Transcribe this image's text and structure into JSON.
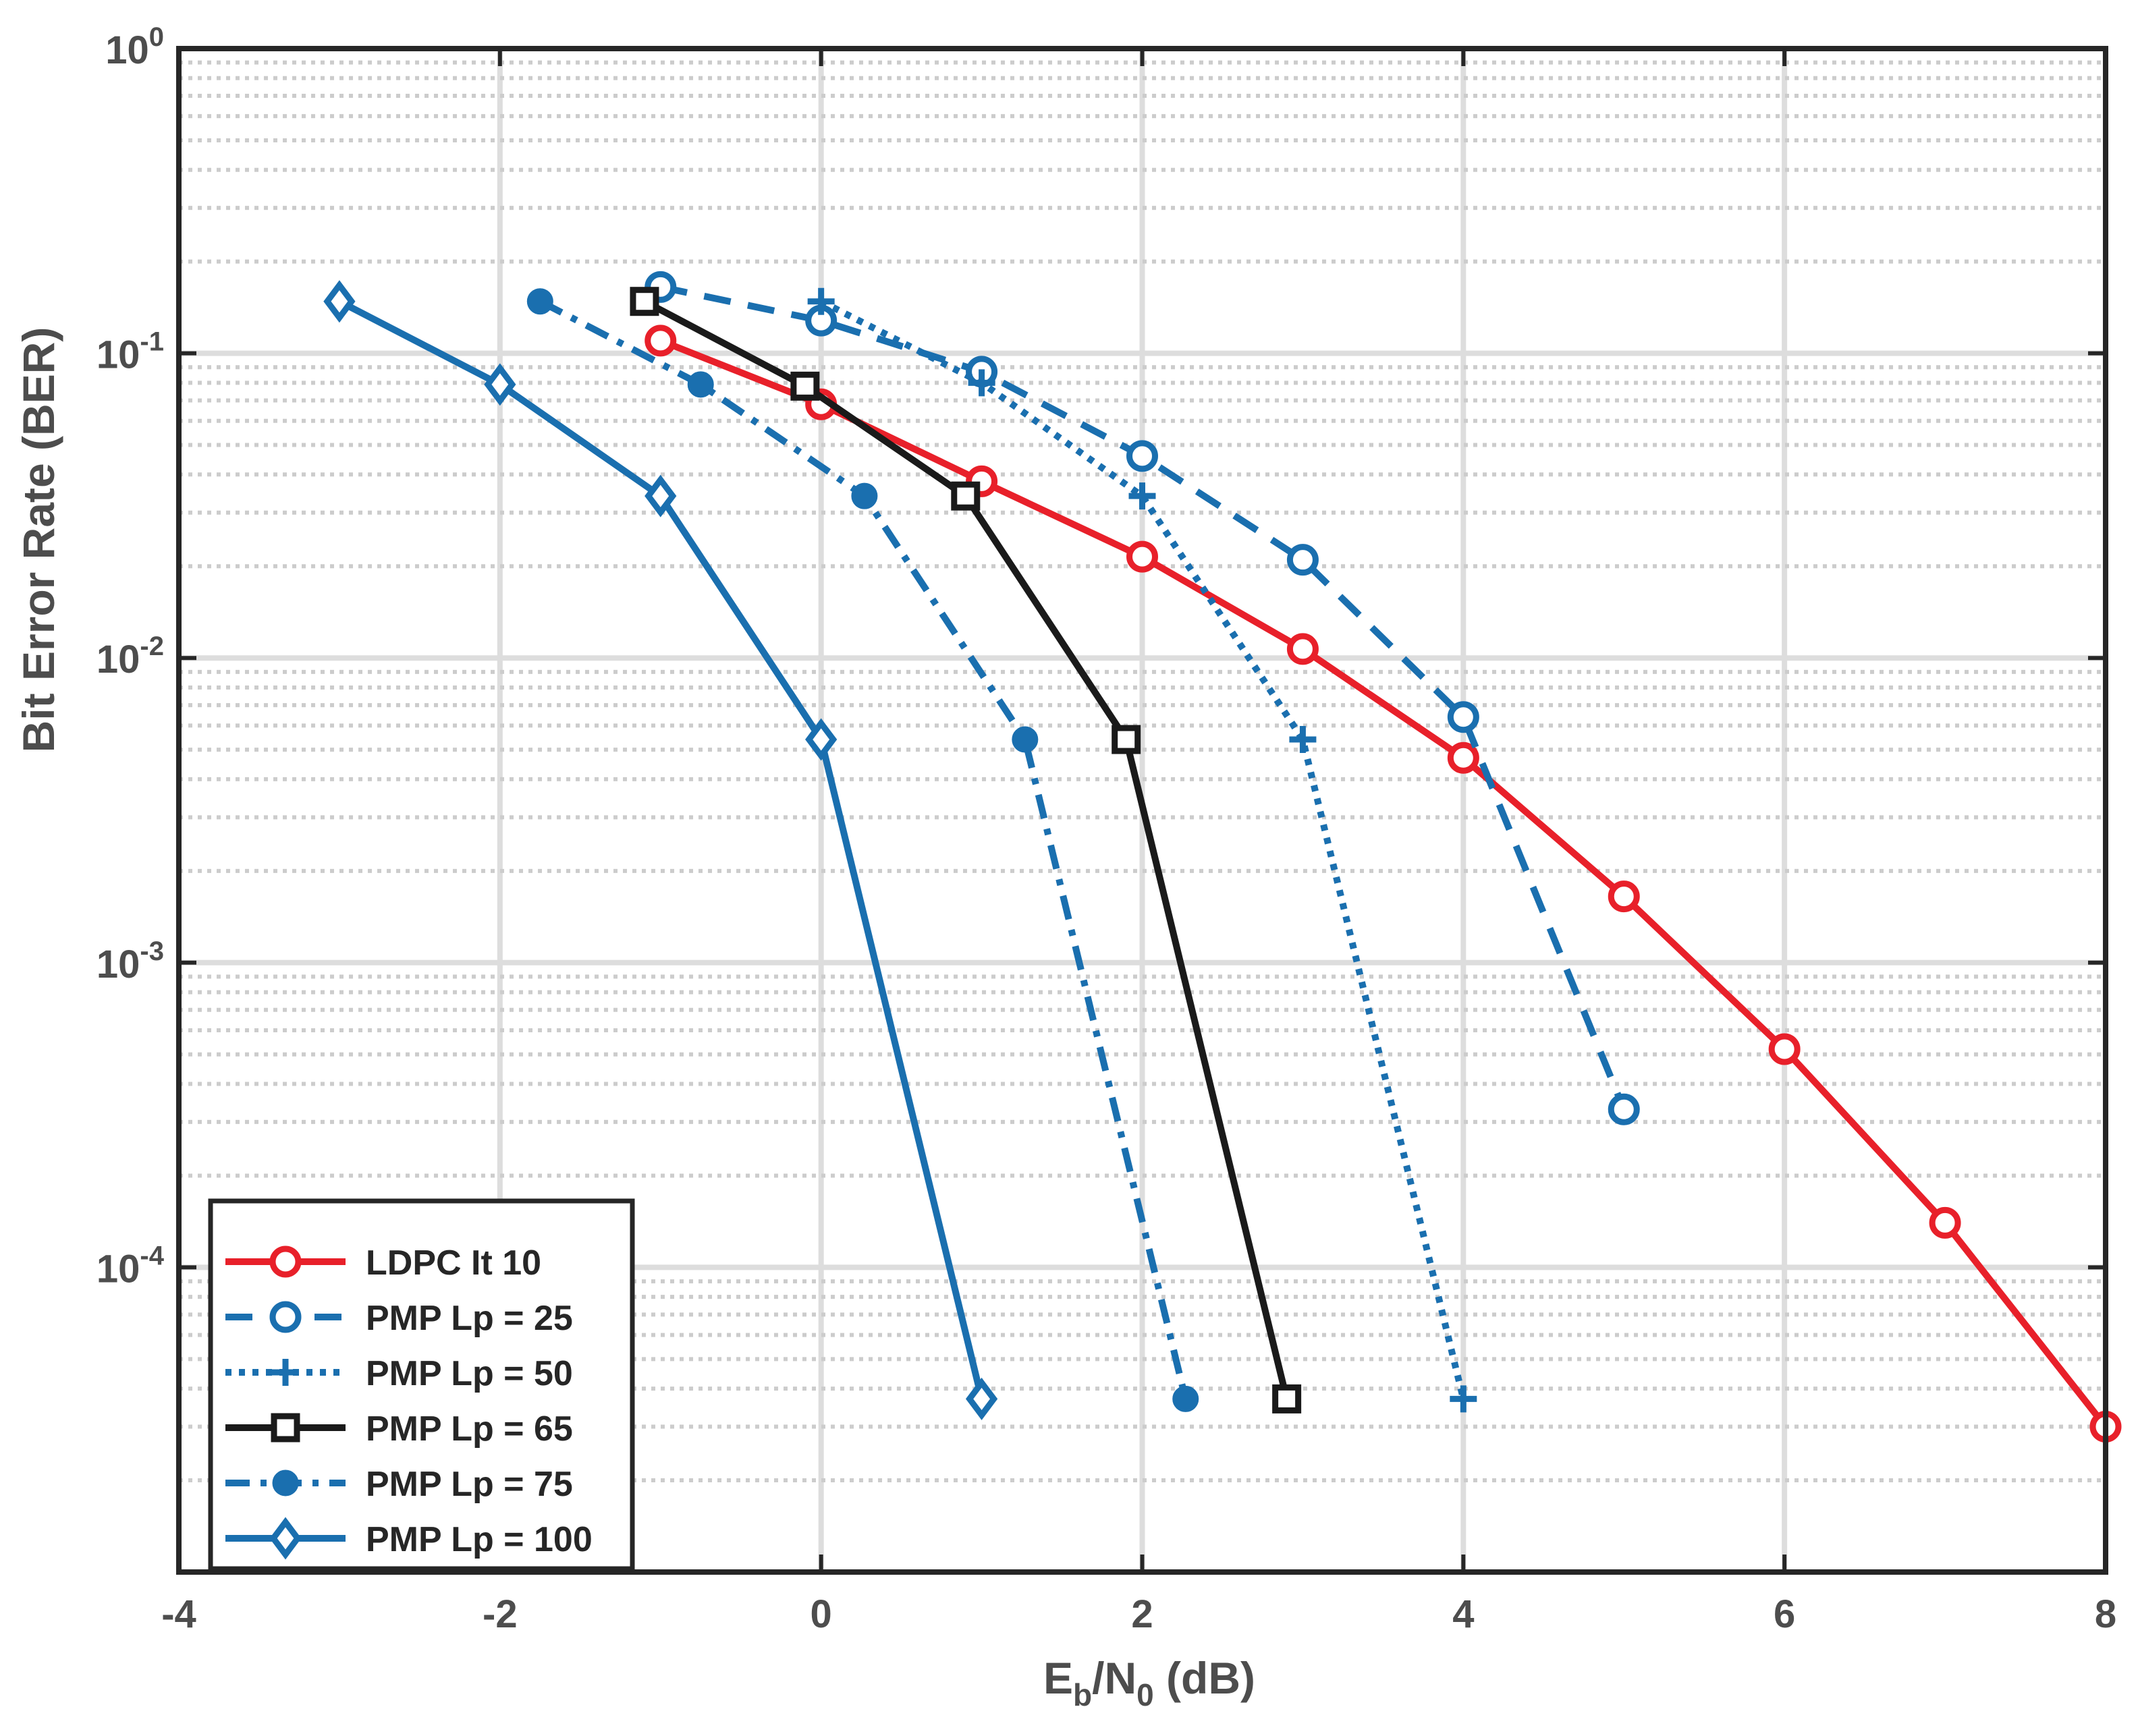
{
  "chart_data": {
    "type": "line",
    "title": "",
    "xlabel": {
      "main": "E",
      "sub": "b",
      "mid": "/N",
      "sub2": "0",
      "tail": " (dB)"
    },
    "ylabel": "Bit Error Rate (BER)",
    "xlim": [
      -4,
      8
    ],
    "ylim": [
      1e-05,
      1
    ],
    "yscale": "log",
    "grid": true,
    "legend_position": "bottom-left",
    "x_ticks": [
      "-4",
      "-2",
      "0",
      "2",
      "4",
      "6",
      "8"
    ],
    "y_ticks": [
      {
        "base": "10",
        "exp": "0"
      },
      {
        "base": "10",
        "exp": "-1"
      },
      {
        "base": "10",
        "exp": "-2"
      },
      {
        "base": "10",
        "exp": "-3"
      },
      {
        "base": "10",
        "exp": "-4"
      }
    ],
    "series": [
      {
        "name": "LDPC It 10",
        "color": "#e8202a",
        "dash": "solid",
        "marker": "circle-open",
        "x": [
          -1,
          0,
          1,
          2,
          3,
          4,
          5,
          6,
          7,
          8
        ],
        "y": [
          0.11,
          0.068,
          0.038,
          0.0215,
          0.0107,
          0.0047,
          0.00165,
          0.00052,
          0.00014,
          3e-05
        ]
      },
      {
        "name": "PMP Lp = 25",
        "color": "#1a6faf",
        "dash": "dashed",
        "marker": "circle-open",
        "x": [
          -1,
          0,
          1,
          2,
          3,
          4,
          5
        ],
        "y": [
          0.165,
          0.128,
          0.087,
          0.046,
          0.021,
          0.0064,
          0.00033
        ]
      },
      {
        "name": "PMP Lp = 50",
        "color": "#1a6faf",
        "dash": "dotted",
        "marker": "plus",
        "x": [
          0,
          1,
          2,
          3,
          4
        ],
        "y": [
          0.148,
          0.08,
          0.034,
          0.0054,
          3.7e-05
        ]
      },
      {
        "name": "PMP Lp = 65",
        "color": "#1a1a1a",
        "dash": "solid",
        "marker": "square-open",
        "x": [
          -1.1,
          -0.1,
          0.9,
          1.9,
          2.9
        ],
        "y": [
          0.148,
          0.078,
          0.034,
          0.0054,
          3.7e-05
        ]
      },
      {
        "name": "PMP Lp = 75",
        "color": "#1a6faf",
        "dash": "dashdot",
        "marker": "circle-filled",
        "x": [
          -1.75,
          -0.75,
          0.27,
          1.27,
          2.27
        ],
        "y": [
          0.148,
          0.079,
          0.034,
          0.0054,
          3.7e-05
        ]
      },
      {
        "name": "PMP Lp = 100",
        "color": "#1a6faf",
        "dash": "solid",
        "marker": "diamond-open",
        "x": [
          -3,
          -2,
          -1,
          0,
          1
        ],
        "y": [
          0.148,
          0.079,
          0.034,
          0.0054,
          3.7e-05
        ]
      }
    ]
  }
}
